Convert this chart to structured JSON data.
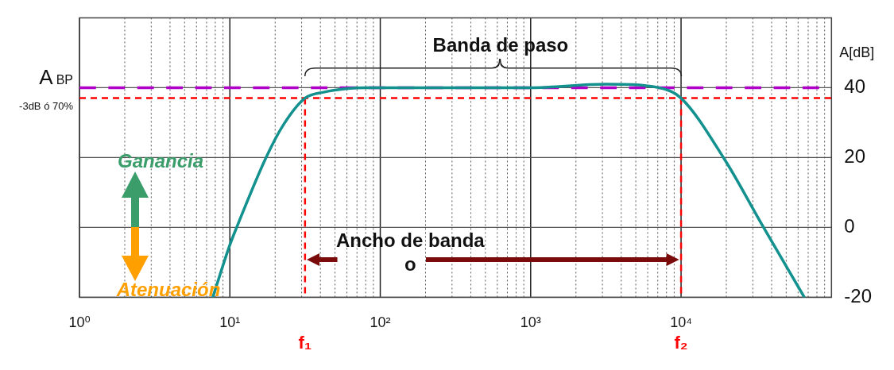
{
  "chart_data": {
    "type": "line",
    "ylabel": "A[dB]",
    "log": "x",
    "grid": true,
    "legend": false,
    "marker": "none",
    "line_style": "solid",
    "xlim": [
      1,
      100000
    ],
    "ylim": [
      -20,
      60
    ],
    "xticks": [
      {
        "value": 1,
        "label": "10⁰"
      },
      {
        "value": 2,
        "label": null
      },
      {
        "value": 3,
        "label": null
      },
      {
        "value": 4,
        "label": null
      },
      {
        "value": 5,
        "label": null
      },
      {
        "value": 6,
        "label": null
      },
      {
        "value": 7,
        "label": null
      },
      {
        "value": 8,
        "label": null
      },
      {
        "value": 9,
        "label": null
      },
      {
        "value": 10,
        "label": "10¹"
      },
      {
        "value": 20,
        "label": null
      },
      {
        "value": 30,
        "label": null
      },
      {
        "value": 40,
        "label": null
      },
      {
        "value": 50,
        "label": null
      },
      {
        "value": 60,
        "label": null
      },
      {
        "value": 70,
        "label": null
      },
      {
        "value": 80,
        "label": null
      },
      {
        "value": 90,
        "label": null
      },
      {
        "value": 100,
        "label": "10²"
      },
      {
        "value": 200,
        "label": null
      },
      {
        "value": 300,
        "label": null
      },
      {
        "value": 400,
        "label": null
      },
      {
        "value": 500,
        "label": null
      },
      {
        "value": 600,
        "label": null
      },
      {
        "value": 700,
        "label": null
      },
      {
        "value": 800,
        "label": null
      },
      {
        "value": 900,
        "label": null
      },
      {
        "value": 1000,
        "label": "10³"
      },
      {
        "value": 2000,
        "label": null
      },
      {
        "value": 3000,
        "label": null
      },
      {
        "value": 4000,
        "label": null
      },
      {
        "value": 5000,
        "label": null
      },
      {
        "value": 6000,
        "label": null
      },
      {
        "value": 7000,
        "label": null
      },
      {
        "value": 8000,
        "label": null
      },
      {
        "value": 9000,
        "label": null
      },
      {
        "value": 10000,
        "label": "10⁴"
      },
      {
        "value": 20000,
        "label": null
      },
      {
        "value": 30000,
        "label": null
      },
      {
        "value": 40000,
        "label": null
      },
      {
        "value": 50000,
        "label": null
      },
      {
        "value": 60000,
        "label": null
      },
      {
        "value": 70000,
        "label": null
      },
      {
        "value": 80000,
        "label": null
      },
      {
        "value": 90000,
        "label": null
      }
    ],
    "yticks": [
      -20,
      0,
      20,
      40
    ],
    "series": [
      {
        "color": "#13918f",
        "x": [
          7.7,
          10,
          11.1,
          17.4,
          22.8,
          31.6,
          42,
          59,
          80,
          200,
          1000,
          3160,
          7100,
          10000,
          19500,
          34500,
          66000
        ],
        "values": [
          -20,
          -5,
          0,
          20,
          29.5,
          37,
          38.7,
          39.7,
          40,
          40,
          40,
          41,
          40,
          37,
          19.4,
          0.8,
          -20
        ]
      }
    ],
    "ref_lines": [
      {
        "axis": "y",
        "value": 40,
        "label": "A$_{BP}$",
        "color": "#b000c8",
        "line_style": "dashed"
      },
      {
        "axis": "y",
        "value": 37,
        "label": "-3dB ó 70%",
        "color": "#ff0000",
        "line_style": "dashed"
      },
      {
        "axis": "x",
        "value": 31.6,
        "label": "f₁",
        "color": "#ff0000",
        "line_style": "dashed"
      },
      {
        "axis": "x",
        "value": 10000,
        "label": "f₂",
        "color": "#ff0000",
        "line_style": "dashed"
      }
    ],
    "annotations": [
      "Banda de paso",
      "Ancho de banda",
      "o",
      "Ganancia",
      "Atenuación"
    ]
  }
}
